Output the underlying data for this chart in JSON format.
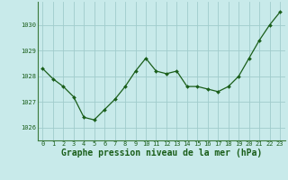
{
  "x": [
    0,
    1,
    2,
    3,
    4,
    5,
    6,
    7,
    8,
    9,
    10,
    11,
    12,
    13,
    14,
    15,
    16,
    17,
    18,
    19,
    20,
    21,
    22,
    23
  ],
  "y": [
    1028.3,
    1027.9,
    1027.6,
    1027.2,
    1026.4,
    1026.3,
    1026.7,
    1027.1,
    1027.6,
    1028.2,
    1028.7,
    1028.2,
    1028.1,
    1028.2,
    1027.6,
    1027.6,
    1027.5,
    1027.4,
    1027.6,
    1028.0,
    1028.7,
    1029.4,
    1030.0,
    1030.5
  ],
  "line_color": "#1a5e1a",
  "marker_color": "#1a5e1a",
  "bg_color": "#c8eaea",
  "grid_color": "#a0cccc",
  "xlabel": "Graphe pression niveau de la mer (hPa)",
  "ylim": [
    1025.5,
    1030.9
  ],
  "yticks": [
    1026,
    1027,
    1028,
    1029,
    1030
  ],
  "xticks": [
    0,
    1,
    2,
    3,
    4,
    5,
    6,
    7,
    8,
    9,
    10,
    11,
    12,
    13,
    14,
    15,
    16,
    17,
    18,
    19,
    20,
    21,
    22,
    23
  ],
  "axis_color": "#1a5e1a",
  "tick_label_size": 5.0,
  "xlabel_size": 7.0,
  "spine_color": "#3a7a3a"
}
